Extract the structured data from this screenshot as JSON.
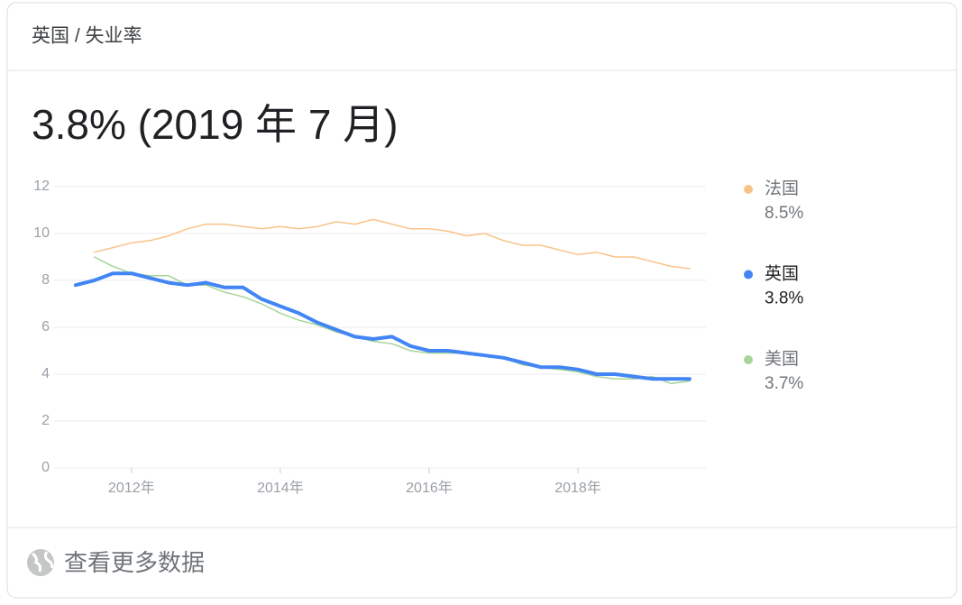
{
  "breadcrumb": "英国 / 失业率",
  "footer": "查看更多数据",
  "chart_data": {
    "type": "line",
    "title": "3.8% (2019 年 7 月)",
    "x": [
      2011.25,
      2011.5,
      2011.75,
      2012.0,
      2012.25,
      2012.5,
      2012.75,
      2013.0,
      2013.25,
      2013.5,
      2013.75,
      2014.0,
      2014.25,
      2014.5,
      2014.75,
      2015.0,
      2015.25,
      2015.5,
      2015.75,
      2016.0,
      2016.25,
      2016.5,
      2016.75,
      2017.0,
      2017.25,
      2017.5,
      2017.75,
      2018.0,
      2018.25,
      2018.5,
      2018.75,
      2019.0,
      2019.25,
      2019.5
    ],
    "xlim": [
      2010.96,
      2019.72
    ],
    "xticks": [
      {
        "value": 2012,
        "label": "2012年"
      },
      {
        "value": 2014,
        "label": "2014年"
      },
      {
        "value": 2016,
        "label": "2016年"
      },
      {
        "value": 2018,
        "label": "2018年"
      }
    ],
    "ylim": [
      0,
      12
    ],
    "yticks": [
      0,
      2,
      4,
      6,
      8,
      10,
      12
    ],
    "grid": true,
    "series": [
      {
        "name": "法国",
        "color": "#f8c388",
        "legend_value": "8.5%",
        "values": [
          null,
          9.2,
          9.4,
          9.6,
          9.7,
          9.9,
          10.2,
          10.4,
          10.4,
          10.3,
          10.2,
          10.3,
          10.2,
          10.3,
          10.5,
          10.4,
          10.6,
          10.4,
          10.2,
          10.2,
          10.1,
          9.9,
          10.0,
          9.7,
          9.5,
          9.5,
          9.3,
          9.1,
          9.2,
          9.0,
          9.0,
          8.8,
          8.6,
          8.5
        ]
      },
      {
        "name": "英国",
        "color": "#4285f4",
        "legend_value": "3.8%",
        "values": [
          7.8,
          8.0,
          8.3,
          8.3,
          8.1,
          7.9,
          7.8,
          7.9,
          7.7,
          7.7,
          7.2,
          6.9,
          6.6,
          6.2,
          5.9,
          5.6,
          5.5,
          5.6,
          5.2,
          5.0,
          5.0,
          4.9,
          4.8,
          4.7,
          4.5,
          4.3,
          4.3,
          4.2,
          4.0,
          4.0,
          3.9,
          3.8,
          3.8,
          3.8
        ]
      },
      {
        "name": "美国",
        "color": "#a8d59a",
        "legend_value": "3.7%",
        "values": [
          null,
          9.0,
          8.6,
          8.3,
          8.2,
          8.2,
          7.8,
          7.8,
          7.5,
          7.3,
          7.0,
          6.6,
          6.3,
          6.1,
          5.8,
          5.6,
          5.4,
          5.3,
          5.0,
          4.9,
          4.9,
          4.9,
          4.8,
          4.7,
          4.4,
          4.3,
          4.2,
          4.1,
          3.9,
          3.8,
          3.8,
          3.9,
          3.6,
          3.7
        ]
      }
    ]
  }
}
